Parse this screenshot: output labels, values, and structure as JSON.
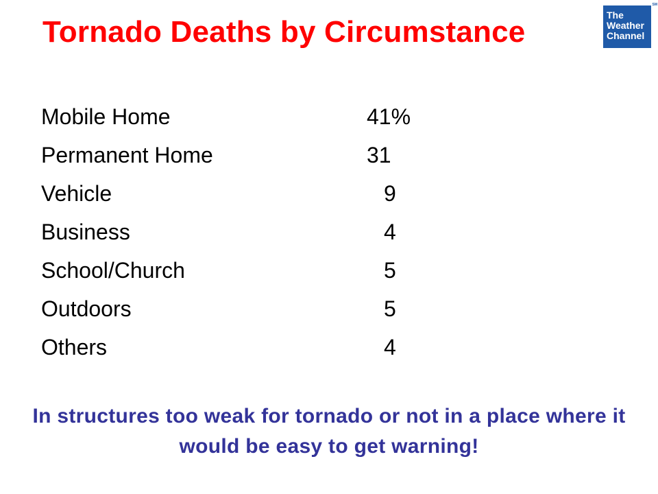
{
  "slide": {
    "title": "Tornado Deaths by Circumstance",
    "logo": {
      "lines": [
        "The",
        "Weather",
        "Channel"
      ],
      "mark": "SM",
      "color": "#1f5aa8"
    },
    "rows": [
      {
        "label": "Mobile Home",
        "value": "41%"
      },
      {
        "label": "Permanent Home",
        "value": "31"
      },
      {
        "label": "Vehicle",
        "value": "9"
      },
      {
        "label": "Business",
        "value": "4"
      },
      {
        "label": "School/Church",
        "value": "5"
      },
      {
        "label": "Outdoors",
        "value": "5"
      },
      {
        "label": "Others",
        "value": "4"
      }
    ],
    "conclusion": "In structures too weak for tornado or not in a place where it would be easy to get warning!",
    "colors": {
      "title": "#ff0000",
      "body": "#000000",
      "conclusion": "#333399"
    }
  }
}
